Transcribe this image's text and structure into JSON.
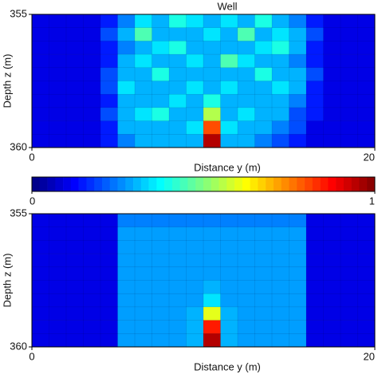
{
  "chart_data": [
    {
      "type": "heatmap",
      "title": "Well",
      "x_label": "Distance y (m)",
      "y_label": "Depth z (m)",
      "xlim": [
        0,
        20
      ],
      "xticks": [
        0,
        20
      ],
      "ylim": [
        355,
        360
      ],
      "yticks": [
        355,
        360
      ],
      "y_inverted": true,
      "colormap": "jet",
      "zlim": [
        0,
        1
      ],
      "z": [
        [
          0.1,
          0.1,
          0.1,
          0.1,
          0.15,
          0.25,
          0.35,
          0.3,
          0.4,
          0.35,
          0.3,
          0.35,
          0.3,
          0.4,
          0.3,
          0.25,
          0.15,
          0.1,
          0.1,
          0.1
        ],
        [
          0.1,
          0.1,
          0.1,
          0.1,
          0.2,
          0.3,
          0.45,
          0.3,
          0.3,
          0.3,
          0.35,
          0.3,
          0.45,
          0.3,
          0.35,
          0.3,
          0.2,
          0.1,
          0.1,
          0.1
        ],
        [
          0.1,
          0.1,
          0.1,
          0.1,
          0.15,
          0.25,
          0.3,
          0.35,
          0.4,
          0.3,
          0.3,
          0.3,
          0.3,
          0.35,
          0.4,
          0.3,
          0.15,
          0.1,
          0.1,
          0.1
        ],
        [
          0.1,
          0.1,
          0.1,
          0.1,
          0.15,
          0.3,
          0.35,
          0.3,
          0.3,
          0.35,
          0.3,
          0.45,
          0.35,
          0.3,
          0.3,
          0.25,
          0.15,
          0.1,
          0.1,
          0.1
        ],
        [
          0.1,
          0.1,
          0.1,
          0.1,
          0.2,
          0.3,
          0.3,
          0.4,
          0.3,
          0.3,
          0.3,
          0.3,
          0.3,
          0.4,
          0.3,
          0.3,
          0.2,
          0.1,
          0.1,
          0.1
        ],
        [
          0.1,
          0.1,
          0.1,
          0.1,
          0.2,
          0.35,
          0.3,
          0.3,
          0.3,
          0.35,
          0.3,
          0.35,
          0.3,
          0.3,
          0.35,
          0.3,
          0.15,
          0.1,
          0.1,
          0.1
        ],
        [
          0.1,
          0.1,
          0.1,
          0.1,
          0.15,
          0.3,
          0.3,
          0.3,
          0.35,
          0.3,
          0.4,
          0.3,
          0.3,
          0.3,
          0.3,
          0.25,
          0.15,
          0.1,
          0.1,
          0.1
        ],
        [
          0.1,
          0.1,
          0.1,
          0.1,
          0.2,
          0.3,
          0.35,
          0.4,
          0.3,
          0.3,
          0.55,
          0.3,
          0.35,
          0.3,
          0.3,
          0.2,
          0.15,
          0.1,
          0.1,
          0.1
        ],
        [
          0.1,
          0.1,
          0.1,
          0.1,
          0.15,
          0.3,
          0.3,
          0.3,
          0.3,
          0.35,
          0.8,
          0.35,
          0.3,
          0.3,
          0.25,
          0.2,
          0.1,
          0.1,
          0.1,
          0.1
        ],
        [
          0.1,
          0.1,
          0.1,
          0.1,
          0.15,
          0.25,
          0.3,
          0.3,
          0.3,
          0.3,
          0.95,
          0.3,
          0.3,
          0.25,
          0.2,
          0.15,
          0.1,
          0.1,
          0.1,
          0.1
        ]
      ]
    },
    {
      "type": "colorbar",
      "colormap": "jet",
      "zlim": [
        0,
        1
      ],
      "ticks": [
        0,
        1
      ]
    },
    {
      "type": "heatmap",
      "x_label": "Distance y (m)",
      "y_label": "Depth z (m)",
      "xlim": [
        0,
        20
      ],
      "xticks": [
        0,
        20
      ],
      "ylim": [
        355,
        360
      ],
      "yticks": [
        355,
        360
      ],
      "y_inverted": true,
      "colormap": "jet",
      "zlim": [
        0,
        1
      ],
      "z": [
        [
          0.1,
          0.1,
          0.1,
          0.1,
          0.1,
          0.25,
          0.25,
          0.25,
          0.25,
          0.25,
          0.25,
          0.25,
          0.25,
          0.25,
          0.25,
          0.25,
          0.1,
          0.1,
          0.1,
          0.1
        ],
        [
          0.1,
          0.1,
          0.1,
          0.1,
          0.1,
          0.28,
          0.28,
          0.28,
          0.28,
          0.28,
          0.28,
          0.28,
          0.28,
          0.28,
          0.28,
          0.28,
          0.1,
          0.1,
          0.1,
          0.1
        ],
        [
          0.1,
          0.1,
          0.1,
          0.1,
          0.1,
          0.28,
          0.28,
          0.28,
          0.28,
          0.28,
          0.28,
          0.28,
          0.28,
          0.28,
          0.28,
          0.28,
          0.1,
          0.1,
          0.1,
          0.1
        ],
        [
          0.1,
          0.1,
          0.1,
          0.1,
          0.1,
          0.28,
          0.28,
          0.28,
          0.28,
          0.28,
          0.28,
          0.28,
          0.28,
          0.28,
          0.28,
          0.28,
          0.1,
          0.1,
          0.1,
          0.1
        ],
        [
          0.1,
          0.1,
          0.1,
          0.1,
          0.1,
          0.28,
          0.28,
          0.28,
          0.28,
          0.28,
          0.28,
          0.28,
          0.28,
          0.28,
          0.28,
          0.28,
          0.1,
          0.1,
          0.1,
          0.1
        ],
        [
          0.1,
          0.1,
          0.1,
          0.1,
          0.1,
          0.28,
          0.28,
          0.28,
          0.28,
          0.28,
          0.3,
          0.28,
          0.28,
          0.28,
          0.28,
          0.28,
          0.1,
          0.1,
          0.1,
          0.1
        ],
        [
          0.1,
          0.1,
          0.1,
          0.1,
          0.1,
          0.28,
          0.28,
          0.28,
          0.28,
          0.28,
          0.35,
          0.28,
          0.28,
          0.28,
          0.28,
          0.28,
          0.1,
          0.1,
          0.1,
          0.1
        ],
        [
          0.1,
          0.1,
          0.1,
          0.1,
          0.1,
          0.28,
          0.28,
          0.28,
          0.28,
          0.3,
          0.6,
          0.3,
          0.28,
          0.28,
          0.28,
          0.28,
          0.1,
          0.1,
          0.1,
          0.1
        ],
        [
          0.1,
          0.1,
          0.1,
          0.1,
          0.1,
          0.28,
          0.28,
          0.28,
          0.28,
          0.3,
          0.85,
          0.3,
          0.28,
          0.28,
          0.28,
          0.28,
          0.1,
          0.1,
          0.1,
          0.1
        ],
        [
          0.1,
          0.1,
          0.1,
          0.1,
          0.1,
          0.28,
          0.28,
          0.28,
          0.28,
          0.3,
          0.95,
          0.3,
          0.28,
          0.28,
          0.28,
          0.28,
          0.1,
          0.1,
          0.1,
          0.1
        ]
      ]
    }
  ]
}
